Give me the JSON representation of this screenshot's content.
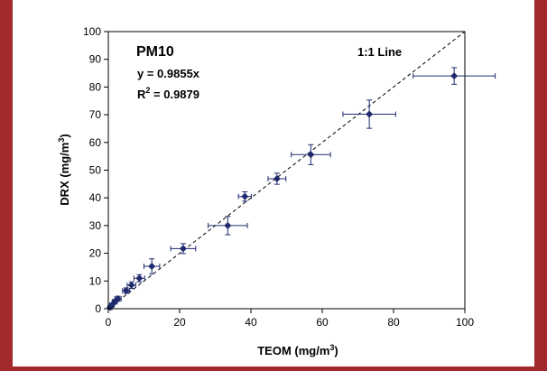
{
  "chart_data": {
    "type": "scatter",
    "title": "",
    "xlabel": "TEOM (mg/m",
    "xlabel_sup": "3",
    "xlabel_end": ")",
    "ylabel": "DRX (mg/m",
    "ylabel_sup": "3",
    "ylabel_end": ")",
    "xlim": [
      0,
      100
    ],
    "ylim": [
      0,
      100
    ],
    "x_ticks": [
      0,
      20,
      40,
      60,
      80,
      100
    ],
    "y_ticks": [
      0,
      10,
      20,
      30,
      40,
      50,
      60,
      70,
      80,
      90,
      100
    ],
    "grid": false,
    "annotations": {
      "series_label": "PM10",
      "equation": "y = 0.9855x",
      "r2_prefix": "R",
      "r2_sup": "2",
      "r2_value": " = 0.9879",
      "line_label": "1:1 Line"
    },
    "reference_line": {
      "style": "dashed",
      "from": [
        0,
        0
      ],
      "to": [
        100,
        100
      ]
    },
    "points": [
      {
        "x": 0.5,
        "y": 0.5,
        "xerr": 0.5,
        "yerr": 0.5
      },
      {
        "x": 1.0,
        "y": 1.3,
        "xerr": 0.6,
        "yerr": 0.6
      },
      {
        "x": 1.8,
        "y": 2.5,
        "xerr": 0.7,
        "yerr": 0.8
      },
      {
        "x": 2.7,
        "y": 3.6,
        "xerr": 0.9,
        "yerr": 0.9
      },
      {
        "x": 5.0,
        "y": 6.5,
        "xerr": 1.0,
        "yerr": 1.0
      },
      {
        "x": 6.5,
        "y": 8.5,
        "xerr": 1.2,
        "yerr": 1.2
      },
      {
        "x": 8.7,
        "y": 11.0,
        "xerr": 1.5,
        "yerr": 1.3
      },
      {
        "x": 12.2,
        "y": 15.3,
        "xerr": 2.2,
        "yerr": 2.7
      },
      {
        "x": 21.0,
        "y": 21.7,
        "xerr": 3.5,
        "yerr": 1.8
      },
      {
        "x": 33.5,
        "y": 30.0,
        "xerr": 5.5,
        "yerr": 3.3
      },
      {
        "x": 38.3,
        "y": 40.5,
        "xerr": 1.8,
        "yerr": 1.7
      },
      {
        "x": 47.3,
        "y": 46.9,
        "xerr": 2.5,
        "yerr": 2.0
      },
      {
        "x": 56.8,
        "y": 55.6,
        "xerr": 5.5,
        "yerr": 3.6
      },
      {
        "x": 73.2,
        "y": 70.2,
        "xerr": 7.4,
        "yerr": 5.1
      },
      {
        "x": 97.0,
        "y": 84.0,
        "xerr": 11.5,
        "yerr": 3.0
      }
    ],
    "marker": "diamond",
    "colors": {
      "marker": "#1f2a6e",
      "axis": "#000000",
      "background": "#ffffff",
      "frame": "#a32a2c"
    }
  }
}
